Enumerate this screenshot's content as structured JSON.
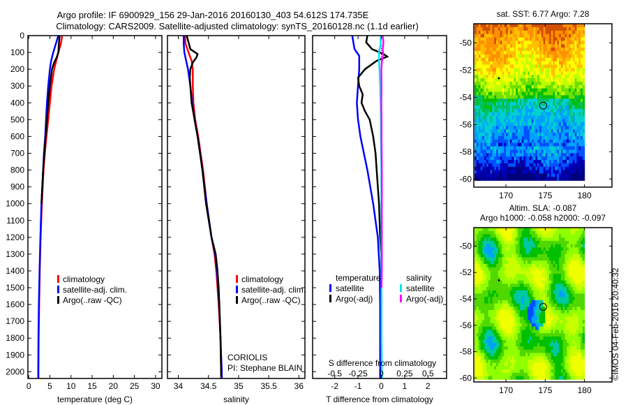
{
  "title": {
    "line1": "Argo profile: IF 6900929_156 29-Jan-2016 20160130_403 54.612S 174.735E",
    "line2": "Climatology: CARS2009. Satellite-adjusted climatology: synTS_20160128.nc (1.1d earlier)"
  },
  "watermark": "©IMOS 04-Feb-2016 20:40:32",
  "colors": {
    "climatology": "#ff0000",
    "satellite": "#0000ff",
    "argo": "#000000",
    "sal_satellite": "#00e5ee",
    "sal_argo": "#ff00ff"
  },
  "chart_data": [
    {
      "type": "line",
      "name": "temperature",
      "xlabel": "temperature (deg C)",
      "xlim": [
        -0.2,
        31.5
      ],
      "ylim": [
        2040,
        0
      ],
      "xticks": [
        0,
        5,
        10,
        15,
        20,
        25,
        30
      ],
      "yticks": [
        0,
        100,
        200,
        300,
        400,
        500,
        600,
        700,
        800,
        900,
        1000,
        1100,
        1200,
        1300,
        1400,
        1500,
        1600,
        1700,
        1800,
        1900,
        2000
      ],
      "legend": [
        "climatology",
        "satellite-adj. clim.",
        "Argo(..raw -QC)"
      ],
      "series": [
        {
          "name": "climatology",
          "color": "#ff0000",
          "depth": [
            0,
            50,
            100,
            150,
            200,
            300,
            400,
            500,
            600,
            700,
            800,
            1000,
            1200,
            1400,
            1600,
            1800,
            2000,
            2040
          ],
          "values": [
            7.9,
            7.6,
            7.0,
            6.5,
            6.0,
            5.4,
            5.0,
            4.6,
            4.2,
            3.8,
            3.5,
            3.1,
            2.8,
            2.6,
            2.45,
            2.35,
            2.3,
            2.3
          ]
        },
        {
          "name": "satellite-adj. clim.",
          "color": "#0000ff",
          "depth": [
            0,
            50,
            100,
            150,
            200,
            300,
            400,
            500,
            600,
            700,
            800,
            1000,
            1200,
            1400,
            1600,
            1800,
            2000,
            2040
          ],
          "values": [
            7.0,
            6.4,
            5.8,
            5.3,
            5.0,
            4.6,
            4.3,
            4.1,
            3.9,
            3.6,
            3.4,
            3.0,
            2.75,
            2.55,
            2.4,
            2.3,
            2.25,
            2.25
          ]
        },
        {
          "name": "Argo(..raw -QC)",
          "color": "#000000",
          "depth": [
            0,
            30,
            60,
            100,
            130,
            160,
            200,
            300,
            400,
            500,
            600,
            700,
            800,
            900,
            1000
          ],
          "values": [
            7.3,
            7.2,
            7.1,
            7.0,
            6.6,
            6.0,
            5.5,
            5.0,
            4.6,
            4.3,
            4.0,
            3.7,
            3.4,
            3.2,
            3.0
          ]
        }
      ]
    },
    {
      "type": "line",
      "name": "salinity",
      "xlabel": "salinity",
      "xlim": [
        33.82,
        36.1
      ],
      "ylim": [
        2040,
        0
      ],
      "xticks": [
        34,
        34.5,
        35,
        35.5,
        36
      ],
      "legend": [
        "climatology",
        "satellite-adj. clim.",
        "Argo(..raw -QC)"
      ],
      "annotation": [
        "CORIOLIS",
        "PI: Stephane BLAIN"
      ],
      "series": [
        {
          "name": "climatology",
          "color": "#ff0000",
          "depth": [
            0,
            50,
            100,
            150,
            200,
            300,
            400,
            500,
            600,
            700,
            800,
            1000,
            1200,
            1300,
            1400,
            1600,
            1800,
            2000,
            2040
          ],
          "values": [
            34.11,
            34.12,
            34.17,
            34.22,
            34.24,
            34.24,
            34.25,
            34.28,
            34.33,
            34.37,
            34.41,
            34.47,
            34.55,
            34.6,
            34.63,
            34.67,
            34.7,
            34.71,
            34.71
          ]
        },
        {
          "name": "satellite-adj. clim.",
          "color": "#0000ff",
          "depth": [
            0,
            50,
            100,
            150,
            200,
            300,
            400,
            500,
            600,
            700,
            800,
            1000,
            1200,
            1300,
            1400,
            1600,
            1800,
            2000,
            2040
          ],
          "values": [
            34.09,
            34.09,
            34.1,
            34.13,
            34.16,
            34.2,
            34.23,
            34.27,
            34.32,
            34.36,
            34.4,
            34.47,
            34.55,
            34.61,
            34.64,
            34.68,
            34.7,
            34.72,
            34.72
          ]
        },
        {
          "name": "Argo(..raw -QC)",
          "color": "#000000",
          "depth": [
            0,
            40,
            80,
            110,
            130,
            160,
            200,
            250,
            300,
            400,
            500,
            600,
            700,
            800,
            1000,
            1200,
            1300,
            1400,
            1500,
            1600,
            1800,
            2000,
            2030
          ],
          "values": [
            34.14,
            34.17,
            34.2,
            34.32,
            34.3,
            34.24,
            34.2,
            34.19,
            34.2,
            34.22,
            34.27,
            34.32,
            34.36,
            34.4,
            34.46,
            34.55,
            34.62,
            34.65,
            34.67,
            34.68,
            34.7,
            34.71,
            34.71
          ]
        }
      ]
    },
    {
      "type": "line",
      "name": "difference from climatology",
      "xlabel": "T difference from climatology",
      "xlabel2": "S difference from climatology",
      "xlim": [
        -2.95,
        2.8
      ],
      "ylim": [
        2040,
        0
      ],
      "xticks": [
        -2,
        -1,
        0,
        1,
        2
      ],
      "xticks2": [
        -0.5,
        -0.25,
        0,
        0.25,
        0.5
      ],
      "xtick2_labels": [
        "-0.5",
        "-0.25",
        "0",
        "0.25",
        "0.5"
      ],
      "legend_temperature": {
        "title": "temperature",
        "items": [
          "satellite",
          "Argo(-adj)"
        ]
      },
      "legend_salinity": {
        "title": "salinity",
        "items": [
          "satellite",
          "Argo(-adj)"
        ]
      },
      "series": [
        {
          "name": "temperature satellite",
          "color": "#0000ff",
          "depth": [
            0,
            40,
            80,
            120,
            200,
            300,
            400,
            500,
            600,
            700,
            800,
            1000,
            1200,
            1400,
            1600,
            2000,
            2040
          ],
          "values": [
            -1.25,
            -1.2,
            -1.15,
            -0.95,
            -0.95,
            -1.0,
            -1.05,
            -1.0,
            -0.9,
            -0.75,
            -0.6,
            -0.35,
            -0.15,
            -0.07,
            -0.05,
            -0.05,
            -0.05
          ]
        },
        {
          "name": "temperature Argo",
          "color": "#000000",
          "depth": [
            0,
            40,
            80,
            110,
            125,
            150,
            200,
            250,
            300,
            350,
            400,
            450,
            500,
            600,
            700,
            800,
            1000,
            1200,
            1300,
            1400
          ],
          "values": [
            -0.6,
            -0.65,
            -0.4,
            0.1,
            0.25,
            -0.2,
            -0.7,
            -1.0,
            -0.95,
            -0.8,
            -0.85,
            -0.7,
            -0.5,
            -0.35,
            -0.25,
            -0.2,
            -0.1,
            -0.05,
            0.0,
            0.0
          ]
        },
        {
          "name": "salinity satellite",
          "color": "#00e5ee",
          "depth": [
            0,
            50,
            100,
            150,
            200,
            300,
            400,
            500,
            600,
            800,
            1000,
            1400,
            1800,
            2000,
            2040
          ],
          "values": [
            -0.03,
            -0.03,
            -0.1,
            -0.1,
            -0.08,
            -0.05,
            -0.03,
            -0.02,
            -0.02,
            0.0,
            0.0,
            0.005,
            0.01,
            0.02,
            0.02
          ]
        },
        {
          "name": "salinity Argo",
          "color": "#ff00ff",
          "depth": [
            0,
            40,
            80,
            110,
            130,
            160,
            200,
            300,
            400,
            500,
            600,
            800,
            1000,
            1200,
            1400,
            1500
          ],
          "values": [
            0.06,
            0.09,
            0.06,
            0.08,
            0.05,
            0.02,
            0.0,
            0.01,
            0.0,
            0.01,
            0.01,
            0.02,
            0.02,
            0.02,
            0.02,
            0.01
          ]
        }
      ]
    },
    {
      "type": "heatmap",
      "name": "sst-map",
      "title": "sat. SST: 6.77 Argo: 7.28",
      "xlim": [
        165.9,
        183.5
      ],
      "ylim": [
        -60.6,
        -48.6
      ],
      "xticks": [
        170,
        175,
        180
      ],
      "yticks": [
        -50,
        -52,
        -54,
        -56,
        -58,
        -60
      ],
      "float_position": [
        174.735,
        -54.612
      ]
    },
    {
      "type": "heatmap",
      "name": "sla-map",
      "title": "Altim. SLA: -0.087",
      "subtitle": "Argo h1000: -0.058 h2000: -0.097",
      "xlim": [
        165.9,
        183.5
      ],
      "ylim": [
        -60.3,
        -48.6
      ],
      "xticks": [
        170,
        175,
        180
      ],
      "yticks": [
        -50,
        -52,
        -54,
        -56,
        -58,
        -60
      ],
      "float_position": [
        174.735,
        -54.612
      ]
    }
  ]
}
